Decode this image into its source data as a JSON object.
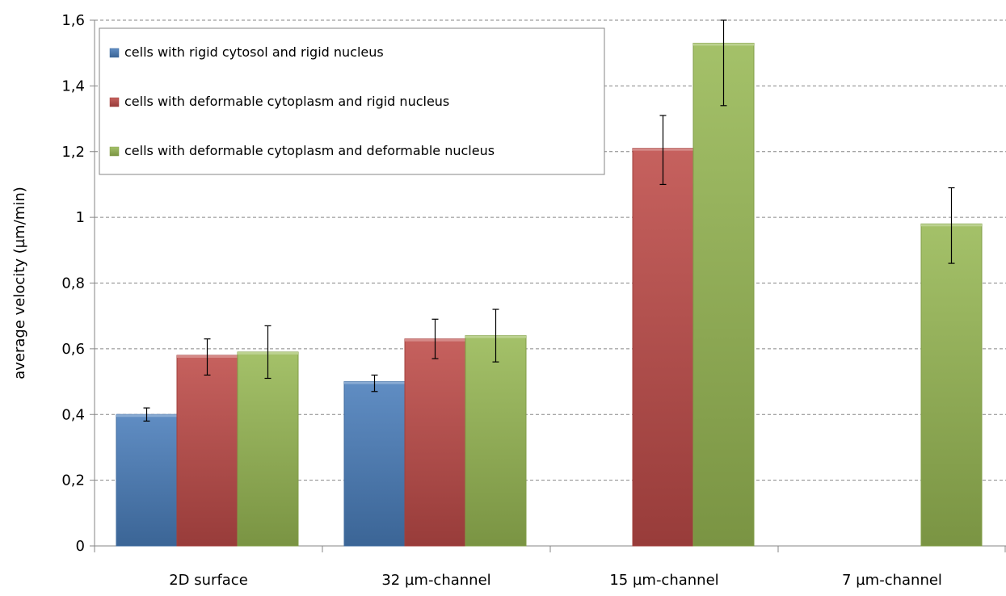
{
  "chart_data": {
    "type": "bar",
    "title": "",
    "xlabel": "",
    "ylabel": "average velocity (µm/min)",
    "ylim": [
      0,
      1.6
    ],
    "yticks": [
      0,
      0.2,
      0.4,
      0.6,
      0.8,
      1,
      1.2,
      1.4,
      1.6
    ],
    "ytick_labels": [
      "0",
      "0,2",
      "0,4",
      "0,6",
      "0,8",
      "1",
      "1,2",
      "1,4",
      "1,6"
    ],
    "grid": "horizontal dashed",
    "legend_position": "top-left",
    "categories": [
      "2D surface",
      "32 µm-channel",
      "15 µm-channel",
      "7 µm-channel"
    ],
    "series": [
      {
        "name": "cells with rigid cytosol and rigid nucleus",
        "color": "#4a7ebb",
        "values": [
          0.4,
          0.5,
          null,
          null
        ],
        "error_low": [
          0.38,
          0.47,
          null,
          null
        ],
        "error_high": [
          0.42,
          0.52,
          null,
          null
        ]
      },
      {
        "name": "cells with deformable cytoplasm and rigid nucleus",
        "color": "#be4b48",
        "values": [
          0.58,
          0.63,
          1.21,
          null
        ],
        "error_low": [
          0.52,
          0.57,
          1.1,
          null
        ],
        "error_high": [
          0.63,
          0.69,
          1.31,
          null
        ]
      },
      {
        "name": "cells with deformable cytoplasm and deformable nucleus",
        "color": "#98b954",
        "values": [
          0.59,
          0.64,
          1.53,
          0.98
        ],
        "error_low": [
          0.51,
          0.56,
          1.34,
          0.86
        ],
        "error_high": [
          0.67,
          0.72,
          1.6,
          1.09
        ]
      }
    ]
  }
}
